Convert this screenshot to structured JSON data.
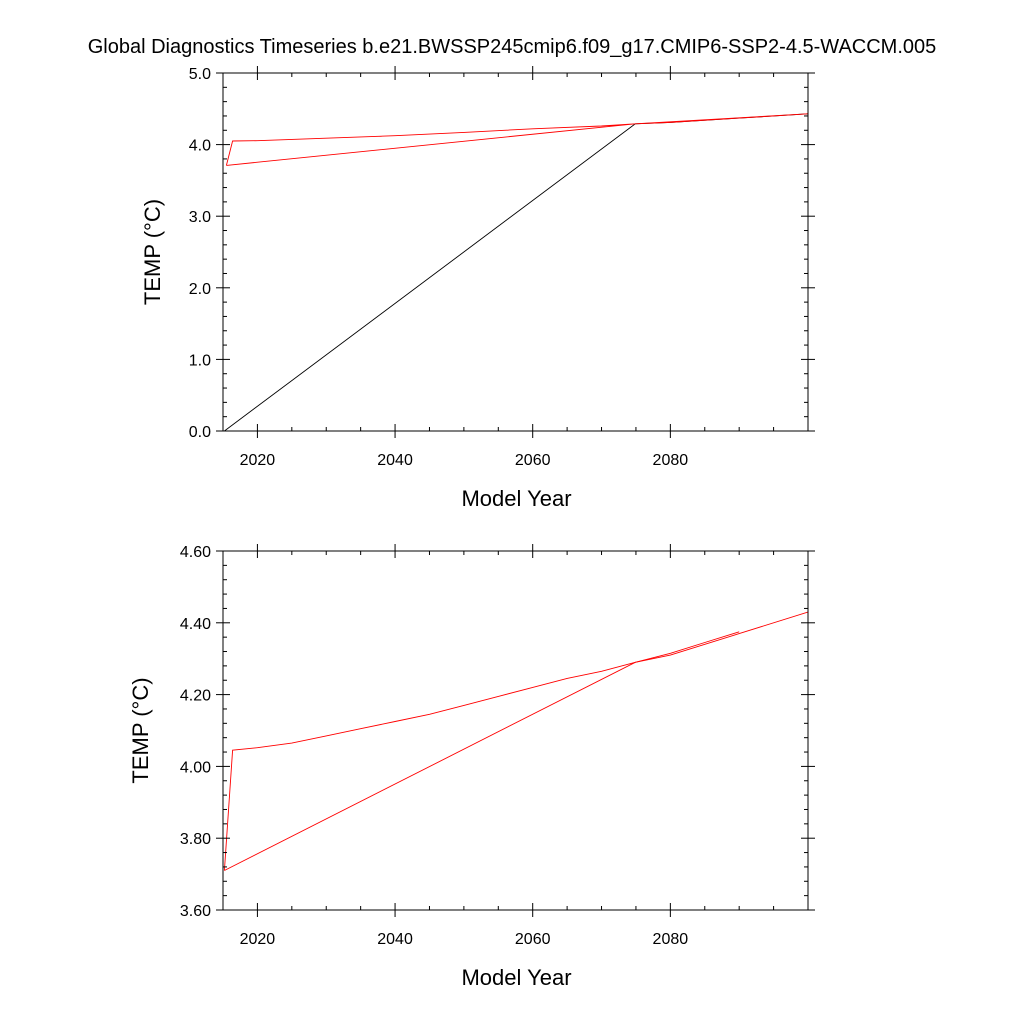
{
  "title": "Global Diagnostics Timeseries b.e21.BWSSP245cmip6.f09_g17.CMIP6-SSP2-4.5-WACCM.005",
  "colors": {
    "black_line": "#000000",
    "red_line": "#ff0000"
  },
  "chart_data": [
    {
      "type": "line",
      "xlabel": "Model Year",
      "ylabel": "TEMP (°C)",
      "xlim": [
        2015,
        2100
      ],
      "ylim": [
        0.0,
        5.0
      ],
      "x_ticks": [
        2020,
        2040,
        2060,
        2080
      ],
      "x_tick_labels": [
        "2020",
        "2040",
        "2060",
        "2080"
      ],
      "y_ticks": [
        0,
        1,
        2,
        3,
        4,
        5
      ],
      "y_tick_labels": [
        "0.0",
        "1.0",
        "2.0",
        "3.0",
        "4.0",
        "5.0"
      ],
      "series": [
        {
          "color": "#000000",
          "x": [
            2015.2,
            2074.9,
            2080,
            2090,
            2100
          ],
          "y": [
            0.0,
            4.29,
            4.31,
            4.37,
            4.43
          ]
        },
        {
          "color": "#ff0000",
          "x": [
            2015.5,
            2016.4,
            2020,
            2030,
            2040,
            2050,
            2060,
            2070,
            2074.9,
            2080,
            2090,
            2100,
            2074.9,
            2015.5
          ],
          "y": [
            3.71,
            4.05,
            4.055,
            4.09,
            4.125,
            4.17,
            4.22,
            4.26,
            4.29,
            4.31,
            4.37,
            4.43,
            4.29,
            3.71
          ]
        }
      ]
    },
    {
      "type": "line",
      "xlabel": "Model Year",
      "ylabel": "TEMP (°C)",
      "xlim": [
        2015,
        2100
      ],
      "ylim": [
        3.6,
        4.6
      ],
      "x_ticks": [
        2020,
        2040,
        2060,
        2080
      ],
      "x_tick_labels": [
        "2020",
        "2040",
        "2060",
        "2080"
      ],
      "y_ticks": [
        3.6,
        3.8,
        4.0,
        4.2,
        4.4,
        4.6
      ],
      "y_tick_labels": [
        "3.60",
        "3.80",
        "4.00",
        "4.20",
        "4.40",
        "4.60"
      ],
      "series": [
        {
          "color": "#ff0000",
          "x": [
            2015.2,
            2016.4,
            2020,
            2025,
            2030,
            2035,
            2040,
            2045,
            2050,
            2055,
            2060,
            2065,
            2070,
            2074.9,
            2080,
            2085,
            2090
          ],
          "y": [
            3.71,
            4.045,
            4.052,
            4.065,
            4.085,
            4.105,
            4.125,
            4.145,
            4.17,
            4.195,
            4.22,
            4.245,
            4.265,
            4.29,
            4.315,
            4.345,
            4.375
          ]
        },
        {
          "color": "#ff0000",
          "x": [
            2015.2,
            2074.9,
            2080,
            2090,
            2100
          ],
          "y": [
            3.71,
            4.29,
            4.31,
            4.37,
            4.43
          ]
        }
      ]
    }
  ]
}
